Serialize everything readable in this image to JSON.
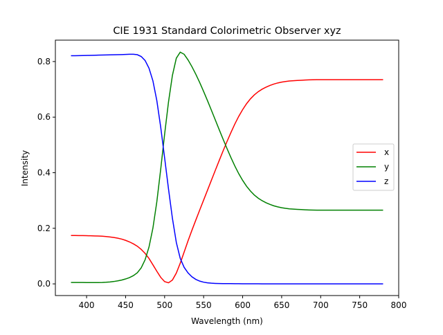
{
  "chart_data": {
    "type": "line",
    "title": "CIE 1931 Standard Colorimetric Observer xyz",
    "xlabel": "Wavelength (nm)",
    "ylabel": "Intensity",
    "xlim": [
      360,
      800
    ],
    "ylim": [
      -0.042,
      0.877
    ],
    "xticks": [
      400,
      450,
      500,
      550,
      600,
      650,
      700,
      750,
      800
    ],
    "yticks": [
      0.0,
      0.2,
      0.4,
      0.6,
      0.8
    ],
    "grid": false,
    "legend_placement": "center-right",
    "x": [
      380,
      385,
      390,
      395,
      400,
      405,
      410,
      415,
      420,
      425,
      430,
      435,
      440,
      445,
      450,
      455,
      460,
      465,
      470,
      475,
      480,
      485,
      490,
      495,
      500,
      505,
      510,
      515,
      520,
      525,
      530,
      535,
      540,
      545,
      550,
      555,
      560,
      565,
      570,
      575,
      580,
      585,
      590,
      595,
      600,
      605,
      610,
      615,
      620,
      625,
      630,
      635,
      640,
      645,
      650,
      655,
      660,
      665,
      670,
      675,
      680,
      685,
      690,
      695,
      700,
      705,
      710,
      715,
      720,
      725,
      730,
      735,
      740,
      745,
      750,
      755,
      760,
      765,
      770,
      775,
      780
    ],
    "series": [
      {
        "name": "x",
        "color": "#ff0000",
        "values": [
          0.1741,
          0.174,
          0.1738,
          0.1736,
          0.1733,
          0.173,
          0.1726,
          0.1721,
          0.1714,
          0.1703,
          0.1689,
          0.1669,
          0.1644,
          0.1611,
          0.1566,
          0.151,
          0.144,
          0.1355,
          0.1241,
          0.1096,
          0.0913,
          0.0687,
          0.0454,
          0.0235,
          0.0082,
          0.0039,
          0.0139,
          0.0389,
          0.0743,
          0.1142,
          0.1547,
          0.1929,
          0.2296,
          0.2658,
          0.3016,
          0.3373,
          0.3731,
          0.4087,
          0.4441,
          0.4788,
          0.5125,
          0.5448,
          0.5752,
          0.6029,
          0.627,
          0.6482,
          0.6658,
          0.6801,
          0.6915,
          0.7006,
          0.7079,
          0.714,
          0.719,
          0.723,
          0.726,
          0.7283,
          0.73,
          0.7311,
          0.732,
          0.7327,
          0.7334,
          0.734,
          0.7344,
          0.7346,
          0.7347,
          0.7347,
          0.7347,
          0.7347,
          0.7347,
          0.7347,
          0.7347,
          0.7347,
          0.7347,
          0.7347,
          0.7347,
          0.7347,
          0.7347,
          0.7347,
          0.7347,
          0.7347,
          0.7347
        ]
      },
      {
        "name": "y",
        "color": "#008000",
        "values": [
          0.005,
          0.005,
          0.0049,
          0.0049,
          0.0048,
          0.0048,
          0.0048,
          0.0048,
          0.0051,
          0.0058,
          0.0069,
          0.0086,
          0.0109,
          0.0138,
          0.0177,
          0.0227,
          0.0297,
          0.0399,
          0.0578,
          0.0868,
          0.1327,
          0.2007,
          0.295,
          0.4127,
          0.5384,
          0.6548,
          0.7502,
          0.812,
          0.8338,
          0.8262,
          0.8059,
          0.7816,
          0.7543,
          0.7243,
          0.6923,
          0.6589,
          0.6245,
          0.5896,
          0.5547,
          0.5202,
          0.4866,
          0.4544,
          0.4242,
          0.3965,
          0.3725,
          0.3514,
          0.334,
          0.3197,
          0.3083,
          0.2993,
          0.292,
          0.2859,
          0.2809,
          0.277,
          0.274,
          0.2717,
          0.27,
          0.2689,
          0.268,
          0.2673,
          0.2666,
          0.266,
          0.2656,
          0.2654,
          0.2653,
          0.2653,
          0.2653,
          0.2653,
          0.2653,
          0.2653,
          0.2653,
          0.2653,
          0.2653,
          0.2653,
          0.2653,
          0.2653,
          0.2653,
          0.2653,
          0.2653,
          0.2653,
          0.2653
        ]
      },
      {
        "name": "z",
        "color": "#0000ff",
        "values": [
          0.8209,
          0.821,
          0.8213,
          0.8215,
          0.8219,
          0.8222,
          0.8226,
          0.8231,
          0.8235,
          0.8239,
          0.8242,
          0.8245,
          0.8247,
          0.8251,
          0.8257,
          0.8263,
          0.8263,
          0.8246,
          0.8181,
          0.8036,
          0.776,
          0.7306,
          0.6596,
          0.5638,
          0.4534,
          0.3413,
          0.2359,
          0.1491,
          0.0919,
          0.0596,
          0.0394,
          0.0255,
          0.0161,
          0.0099,
          0.0061,
          0.0038,
          0.0024,
          0.0017,
          0.0012,
          0.001,
          0.0009,
          0.0008,
          0.0006,
          0.0006,
          0.0005,
          0.0004,
          0.0002,
          0.0002,
          0.0002,
          0.0001,
          0.0001,
          0.0001,
          0.0001,
          0,
          0,
          0,
          0,
          0,
          0,
          0,
          0,
          0,
          0,
          0,
          0,
          0,
          0,
          0,
          0,
          0,
          0,
          0,
          0,
          0,
          0,
          0,
          0,
          0,
          0,
          0,
          0
        ]
      }
    ]
  }
}
